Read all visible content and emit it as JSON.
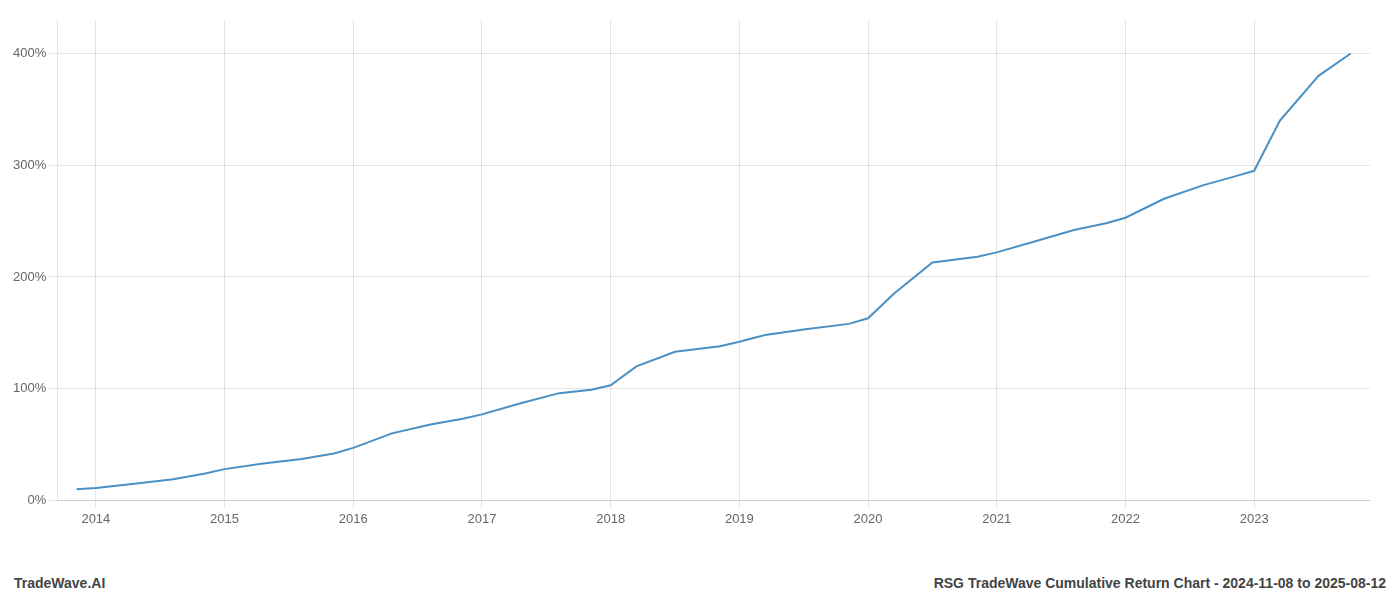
{
  "chart_data": {
    "type": "line",
    "title": "RSG TradeWave Cumulative Return Chart - 2024-11-08 to 2025-08-12",
    "annotations": [
      "TradeWave.AI"
    ],
    "x": [
      2013.85,
      2014.0,
      2014.3,
      2014.6,
      2014.85,
      2015.0,
      2015.3,
      2015.6,
      2015.85,
      2016.0,
      2016.3,
      2016.6,
      2016.85,
      2017.0,
      2017.3,
      2017.6,
      2017.85,
      2018.0,
      2018.2,
      2018.5,
      2018.85,
      2019.0,
      2019.2,
      2019.5,
      2019.85,
      2020.0,
      2020.2,
      2020.5,
      2020.85,
      2021.0,
      2021.3,
      2021.6,
      2021.85,
      2022.0,
      2022.3,
      2022.6,
      2022.85,
      2023.0,
      2023.2,
      2023.5,
      2023.75
    ],
    "values": [
      10,
      11,
      15,
      19,
      24,
      28,
      33,
      37,
      42,
      47,
      60,
      68,
      73,
      77,
      87,
      96,
      99,
      103,
      120,
      133,
      138,
      142,
      148,
      153,
      158,
      163,
      185,
      213,
      218,
      222,
      232,
      242,
      248,
      253,
      270,
      282,
      290,
      295,
      340,
      380,
      400
    ],
    "color": "#4a90c4",
    "xlim": [
      2013.7,
      2023.9
    ],
    "xticks": [
      2014,
      2015,
      2016,
      2017,
      2018,
      2019,
      2020,
      2021,
      2022,
      2023
    ],
    "ylim": [
      0,
      430
    ],
    "yticks": [
      {
        "value": 0,
        "label": "0%"
      },
      {
        "value": 100,
        "label": "100%"
      },
      {
        "value": 200,
        "label": "200%"
      },
      {
        "value": 300,
        "label": "300%"
      },
      {
        "value": 400,
        "label": "400%"
      }
    ],
    "grid": true
  }
}
